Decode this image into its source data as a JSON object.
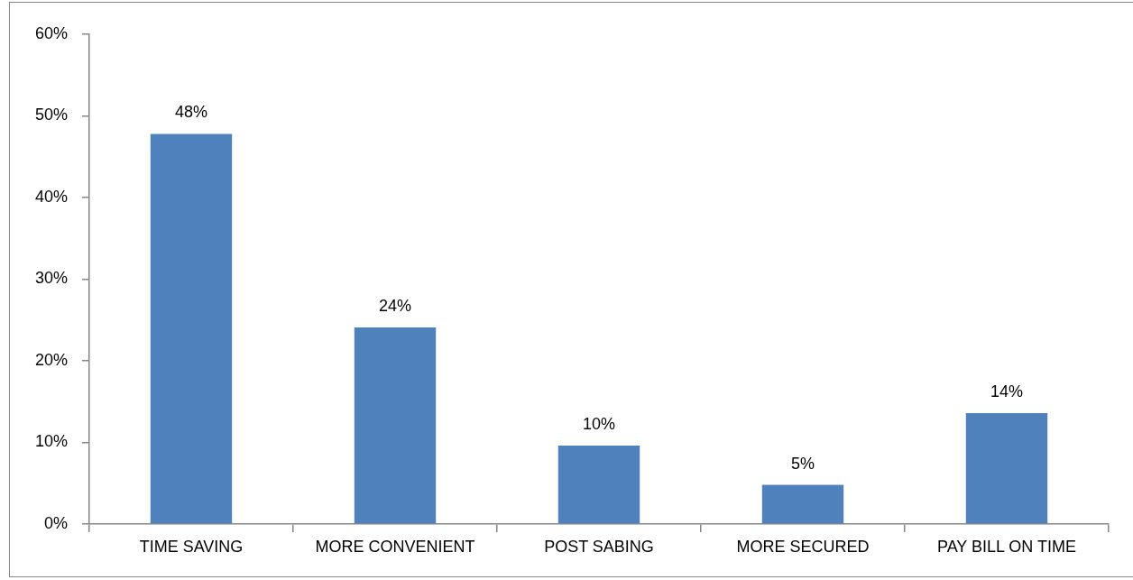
{
  "chart_data": {
    "type": "bar",
    "categories": [
      "TIME SAVING",
      "MORE CONVENIENT",
      "POST SABING",
      "MORE SECURED",
      "PAY BILL ON TIME"
    ],
    "values": [
      47.8,
      24.1,
      9.6,
      4.8,
      13.6
    ],
    "value_labels": [
      "48%",
      "24%",
      "10%",
      "5%",
      "14%"
    ],
    "color": "#4f81bd",
    "ylim": [
      0,
      60
    ],
    "yticks": [
      {
        "value": 0,
        "label": "0%"
      },
      {
        "value": 10,
        "label": "10%"
      },
      {
        "value": 20,
        "label": "20%"
      },
      {
        "value": 30,
        "label": "30%"
      },
      {
        "value": 40,
        "label": "40%"
      },
      {
        "value": 50,
        "label": "50%"
      },
      {
        "value": 60,
        "label": "60%"
      }
    ]
  }
}
